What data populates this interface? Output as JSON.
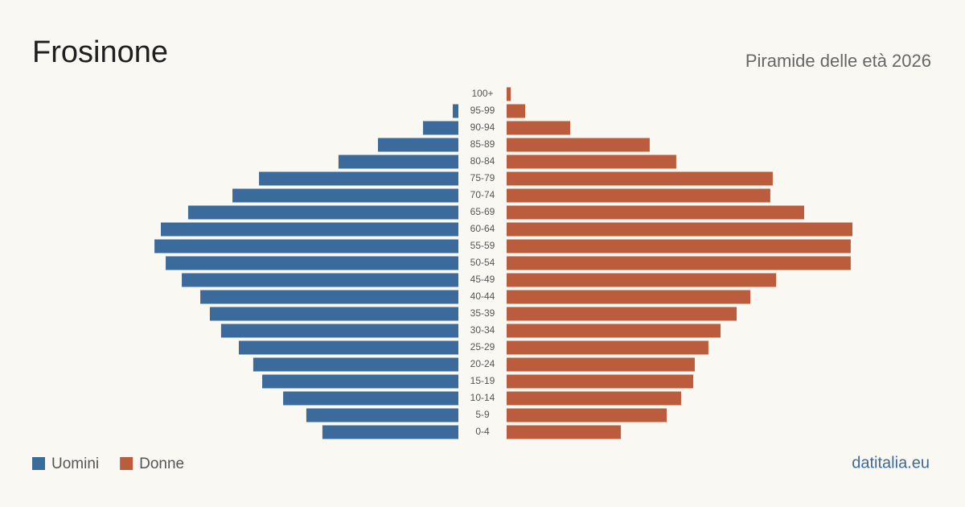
{
  "chart_data": {
    "type": "pyramid",
    "title": "Frosinone",
    "subtitle": "Piramide delle età 2026",
    "source": "datitalia.eu",
    "categories": [
      "100+",
      "95-99",
      "90-94",
      "85-89",
      "80-84",
      "75-79",
      "70-74",
      "65-69",
      "60-64",
      "55-59",
      "50-54",
      "45-49",
      "40-44",
      "35-39",
      "30-34",
      "25-29",
      "20-24",
      "15-19",
      "10-14",
      "5-9",
      "0-4"
    ],
    "series": [
      {
        "name": "Uomini",
        "color": "#3b6a9c",
        "values": [
          0,
          30,
          189,
          430,
          641,
          1066,
          1208,
          1445,
          1591,
          1625,
          1565,
          1479,
          1380,
          1329,
          1269,
          1174,
          1097,
          1049,
          937,
          813,
          727
        ]
      },
      {
        "name": "Donne",
        "color": "#bb5d3d",
        "values": [
          22,
          99,
          340,
          765,
          907,
          1423,
          1410,
          1591,
          1849,
          1840,
          1840,
          1441,
          1303,
          1230,
          1144,
          1079,
          1006,
          998,
          933,
          856,
          611
        ]
      }
    ]
  }
}
